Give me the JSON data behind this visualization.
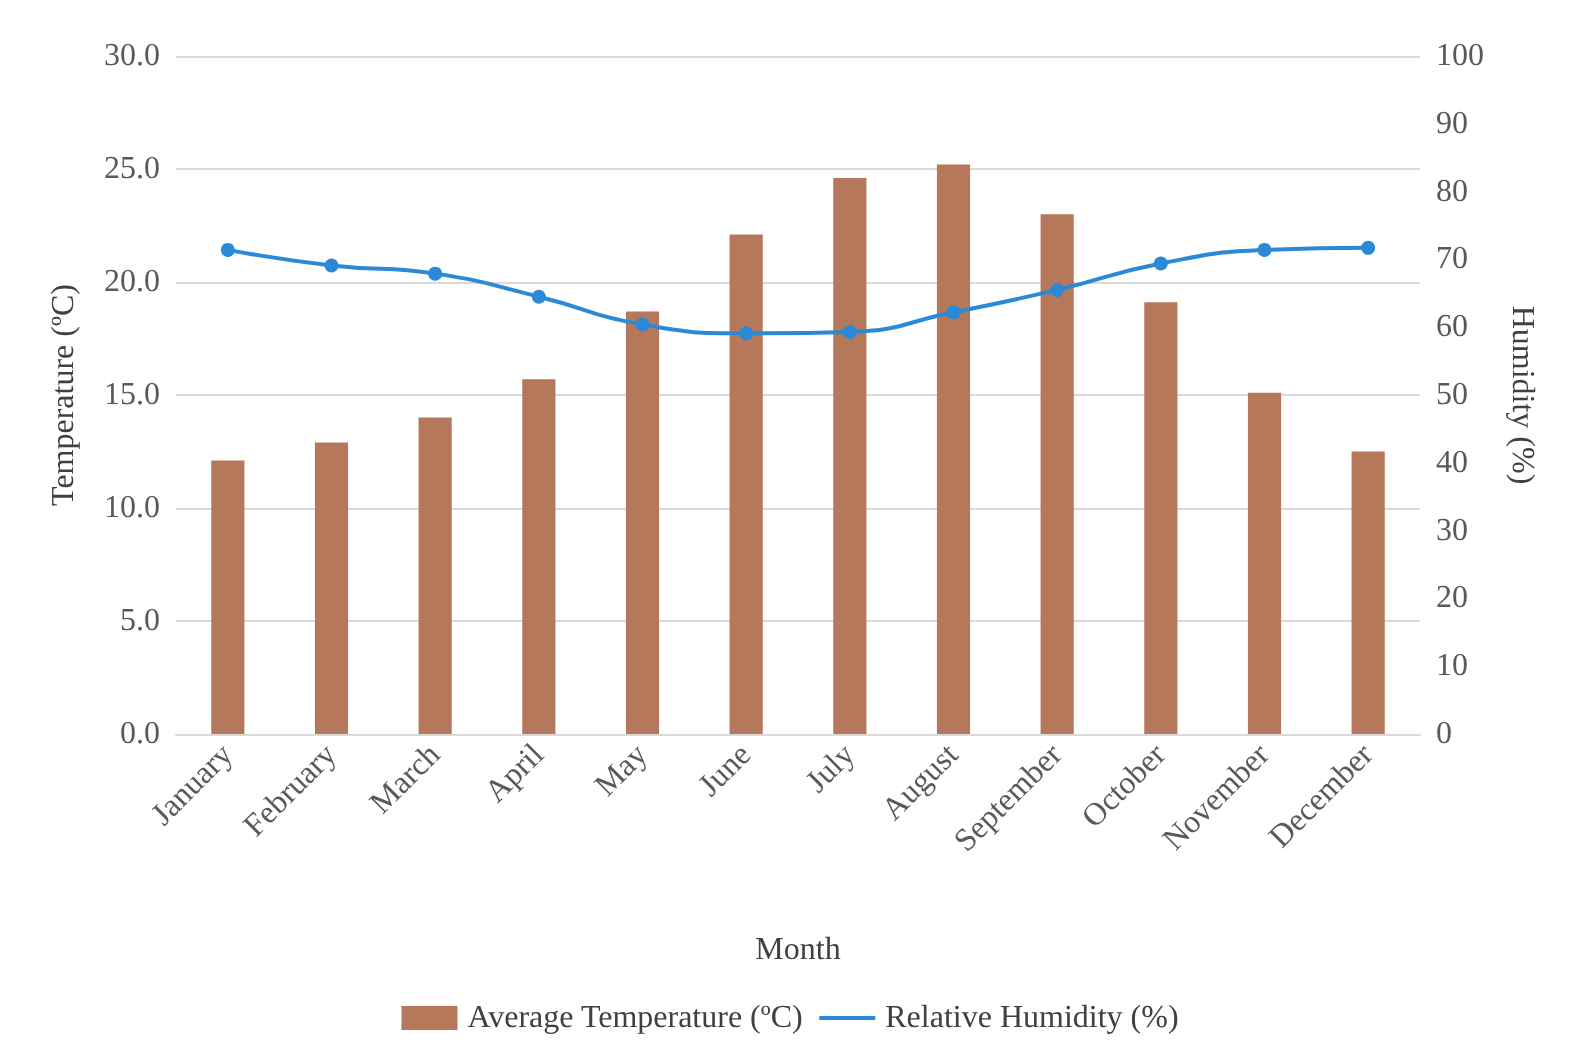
{
  "chart_data": {
    "type": "bar",
    "xlabel": "Month",
    "ylabel": "Temperature (ºC)",
    "y2label": "Humidity (%)",
    "categories": [
      "January",
      "February",
      "March",
      "April",
      "May",
      "June",
      "July",
      "August",
      "September",
      "October",
      "November",
      "December"
    ],
    "series": [
      {
        "name": "Average Temperature (ºC)",
        "color": "#b5785a",
        "values": [
          12.1,
          12.9,
          14.0,
          15.7,
          18.7,
          22.1,
          24.6,
          25.2,
          23.0,
          19.1,
          15.1,
          12.5
        ]
      },
      {
        "name": "Relative Humidity (%)",
        "type": "line",
        "axis": "y2",
        "color": "#2a8ad8",
        "marker": "circle",
        "values": [
          71.4,
          69.1,
          67.9,
          64.5,
          60.4,
          59.1,
          59.3,
          62.2,
          65.5,
          69.4,
          71.4,
          71.7
        ]
      }
    ],
    "ylim": [
      0,
      30
    ],
    "yticks": [
      {
        "value": 0,
        "label": "0.0"
      },
      {
        "value": 5,
        "label": "5.0"
      },
      {
        "value": 10,
        "label": "10.0"
      },
      {
        "value": 15,
        "label": "15.0"
      },
      {
        "value": 20,
        "label": "20.0"
      },
      {
        "value": 25,
        "label": "25.0"
      },
      {
        "value": 30,
        "label": "30.0"
      }
    ],
    "y2lim": [
      0,
      100
    ],
    "y2ticks": [
      0,
      10,
      20,
      30,
      40,
      50,
      60,
      70,
      80,
      90,
      100
    ],
    "grid": "y",
    "legend": "bottom"
  }
}
